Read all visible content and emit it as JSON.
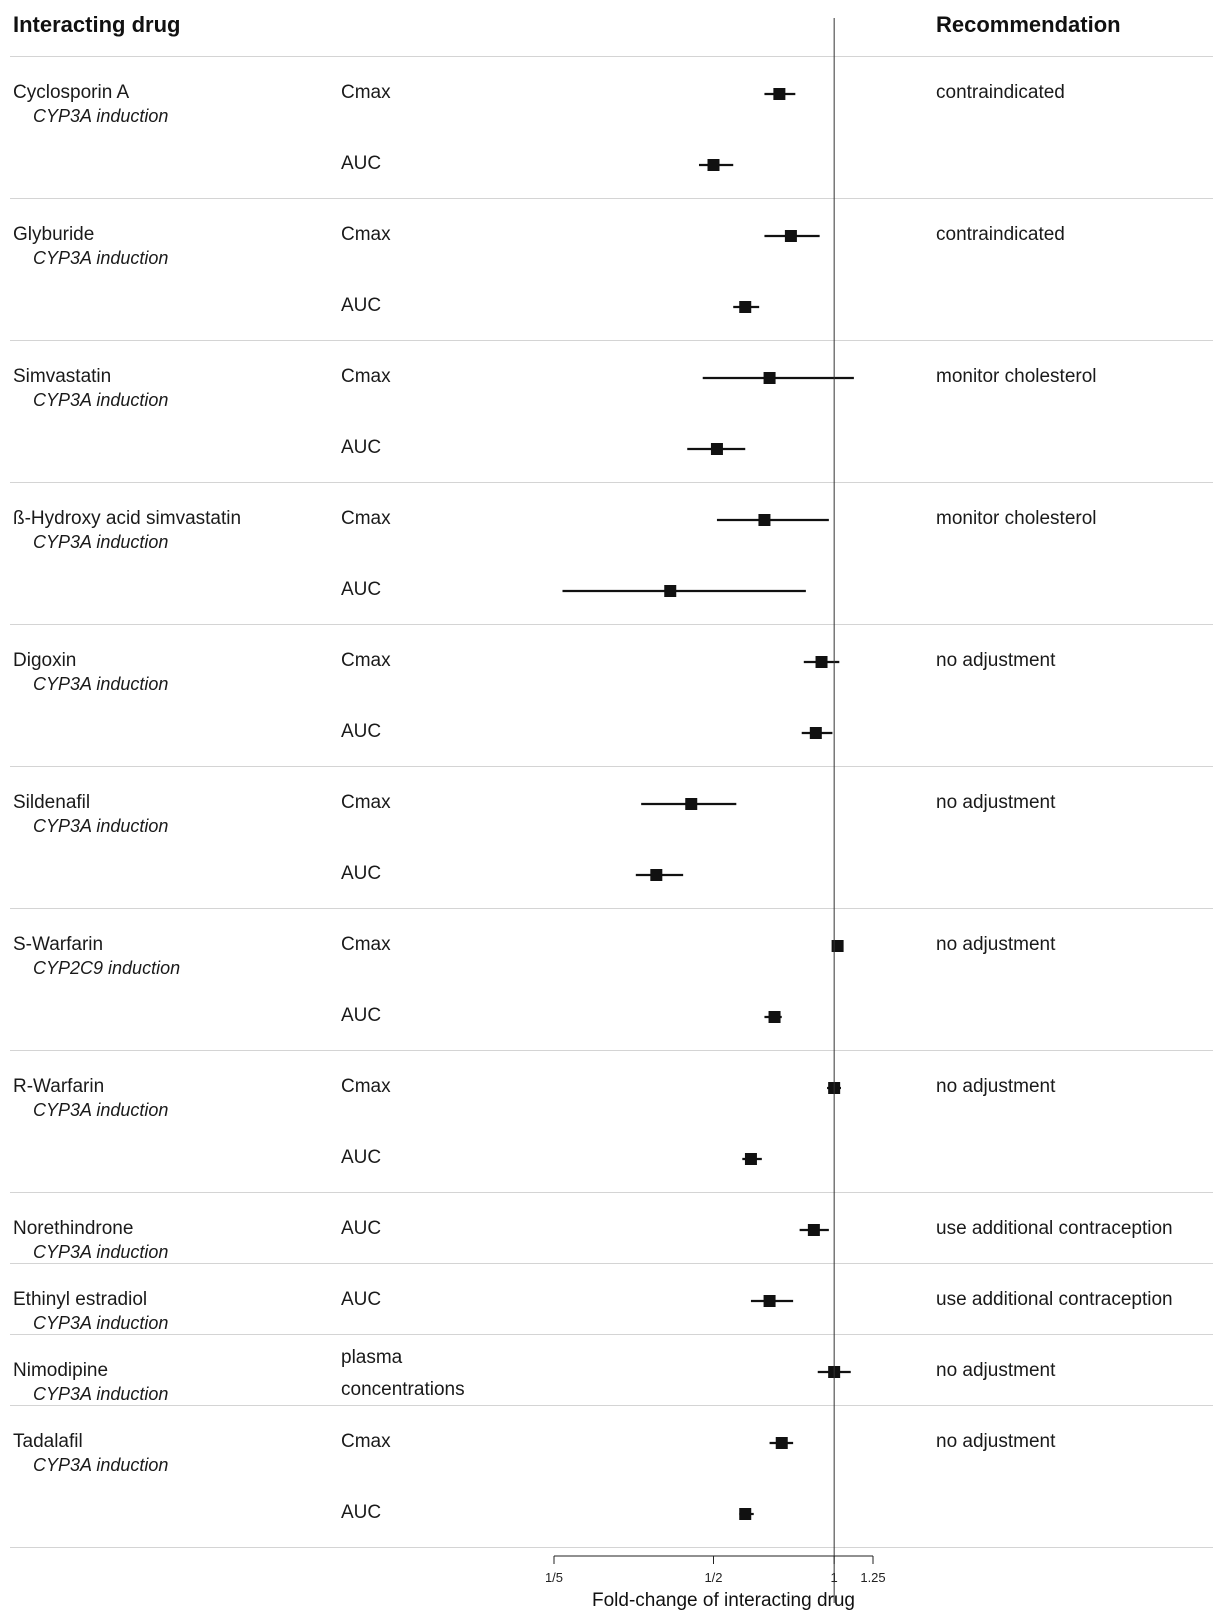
{
  "headers": {
    "interacting_drug": "Interacting drug",
    "recommendation": "Recommendation"
  },
  "chart_data": {
    "type": "forest",
    "xlabel": "Fold-change of interacting drug",
    "x_scale": "log",
    "xlim": [
      0.2,
      1.25
    ],
    "reference_line": 1,
    "x_ticks": [
      {
        "value": 0.2,
        "label": "1/5"
      },
      {
        "value": 0.5,
        "label": "1/2"
      },
      {
        "value": 1,
        "label": "1"
      },
      {
        "value": 1.25,
        "label": "1.25"
      }
    ],
    "groups": [
      {
        "drug": "Cyclosporin A",
        "mechanism": "CYP3A induction",
        "recommendation": "contraindicated",
        "rows": [
          {
            "metric": "Cmax",
            "estimate": 0.73,
            "lower": 0.67,
            "upper": 0.8
          },
          {
            "metric": "AUC",
            "estimate": 0.5,
            "lower": 0.46,
            "upper": 0.56
          }
        ]
      },
      {
        "drug": "Glyburide",
        "mechanism": "CYP3A induction",
        "recommendation": "contraindicated",
        "rows": [
          {
            "metric": "Cmax",
            "estimate": 0.78,
            "lower": 0.67,
            "upper": 0.92
          },
          {
            "metric": "AUC",
            "estimate": 0.6,
            "lower": 0.56,
            "upper": 0.65
          }
        ]
      },
      {
        "drug": "Simvastatin",
        "mechanism": "CYP3A induction",
        "recommendation": "monitor cholesterol",
        "rows": [
          {
            "metric": "Cmax",
            "estimate": 0.69,
            "lower": 0.47,
            "upper": 1.12
          },
          {
            "metric": "AUC",
            "estimate": 0.51,
            "lower": 0.43,
            "upper": 0.6
          }
        ]
      },
      {
        "drug": "ß-Hydroxy acid simvastatin",
        "mechanism": "CYP3A induction",
        "recommendation": "monitor cholesterol",
        "rows": [
          {
            "metric": "Cmax",
            "estimate": 0.67,
            "lower": 0.51,
            "upper": 0.97
          },
          {
            "metric": "AUC",
            "estimate": 0.39,
            "lower": 0.21,
            "upper": 0.85
          }
        ]
      },
      {
        "drug": "Digoxin",
        "mechanism": "CYP3A induction",
        "recommendation": "no adjustment",
        "rows": [
          {
            "metric": "Cmax",
            "estimate": 0.93,
            "lower": 0.84,
            "upper": 1.03
          },
          {
            "metric": "AUC",
            "estimate": 0.9,
            "lower": 0.83,
            "upper": 0.99
          }
        ]
      },
      {
        "drug": "Sildenafil",
        "mechanism": "CYP3A induction",
        "recommendation": "no adjustment",
        "rows": [
          {
            "metric": "Cmax",
            "estimate": 0.44,
            "lower": 0.33,
            "upper": 0.57
          },
          {
            "metric": "AUC",
            "estimate": 0.36,
            "lower": 0.32,
            "upper": 0.42
          }
        ]
      },
      {
        "drug": "S-Warfarin",
        "mechanism": "CYP2C9 induction",
        "recommendation": "no adjustment",
        "rows": [
          {
            "metric": "Cmax",
            "estimate": 1.02,
            "lower": 0.99,
            "upper": 1.05
          },
          {
            "metric": "AUC",
            "estimate": 0.71,
            "lower": 0.67,
            "upper": 0.74
          }
        ]
      },
      {
        "drug": "R-Warfarin",
        "mechanism": "CYP3A induction",
        "recommendation": "no adjustment",
        "rows": [
          {
            "metric": "Cmax",
            "estimate": 1,
            "lower": 0.96,
            "upper": 1.04
          },
          {
            "metric": "AUC",
            "estimate": 0.62,
            "lower": 0.59,
            "upper": 0.66
          }
        ]
      },
      {
        "drug": "Norethindrone",
        "mechanism": "CYP3A induction",
        "recommendation": "use additional contraception",
        "rows": [
          {
            "metric": "AUC",
            "estimate": 0.89,
            "lower": 0.82,
            "upper": 0.97
          }
        ]
      },
      {
        "drug": "Ethinyl estradiol",
        "mechanism": "CYP3A induction",
        "recommendation": "use additional contraception",
        "rows": [
          {
            "metric": "AUC",
            "estimate": 0.69,
            "lower": 0.62,
            "upper": 0.79
          }
        ]
      },
      {
        "drug": "Nimodipine",
        "mechanism": "CYP3A induction",
        "recommendation": "no adjustment",
        "rows": [
          {
            "metric": "plasma\nconcentrations",
            "estimate": 1,
            "lower": 0.91,
            "upper": 1.1
          }
        ]
      },
      {
        "drug": "Tadalafil",
        "mechanism": "CYP3A induction",
        "recommendation": "no adjustment",
        "rows": [
          {
            "metric": "Cmax",
            "estimate": 0.74,
            "lower": 0.69,
            "upper": 0.79
          },
          {
            "metric": "AUC",
            "estimate": 0.6,
            "lower": 0.58,
            "upper": 0.63
          }
        ]
      }
    ]
  }
}
